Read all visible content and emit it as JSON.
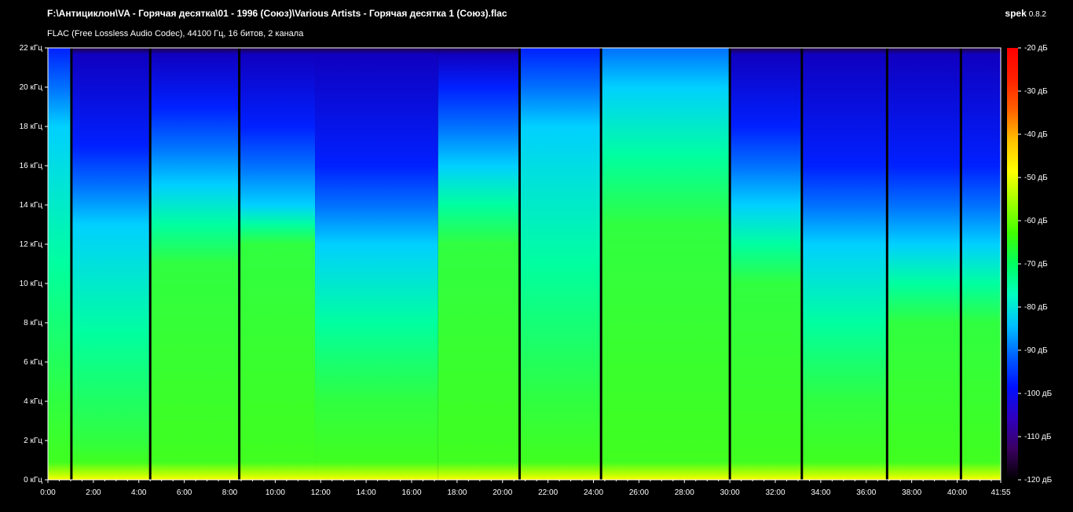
{
  "header": {
    "title": "F:\\Антициклон\\VA - Горячая десятка\\01 - 1996 (Союз)\\Various Artists - Горячая десятка 1 (Союз).flac",
    "app_name": "spek",
    "app_version": "0.8.2",
    "subtitle": "FLAC (Free Lossless Audio Codec), 44100 Гц, 16 битов, 2 канала"
  },
  "chart_data": {
    "type": "heatmap",
    "title": "",
    "xlabel": "",
    "ylabel": "",
    "x_range_seconds": [
      0,
      2515
    ],
    "y_range_khz": [
      0,
      22
    ],
    "x_ticks": [
      "0:00",
      "2:00",
      "4:00",
      "6:00",
      "8:00",
      "10:00",
      "12:00",
      "14:00",
      "16:00",
      "18:00",
      "20:00",
      "22:00",
      "24:00",
      "26:00",
      "28:00",
      "30:00",
      "32:00",
      "34:00",
      "36:00",
      "38:00",
      "40:00",
      "41:55"
    ],
    "y_ticks": [
      "0 кГц",
      "2 кГц",
      "4 кГц",
      "6 кГц",
      "8 кГц",
      "10 кГц",
      "12 кГц",
      "14 кГц",
      "16 кГц",
      "18 кГц",
      "20 кГц",
      "22 кГц"
    ],
    "colorbar_ticks": [
      "-20 дБ",
      "-30 дБ",
      "-40 дБ",
      "-50 дБ",
      "-60 дБ",
      "-70 дБ",
      "-80 дБ",
      "-90 дБ",
      "-100 дБ",
      "-110 дБ",
      "-120 дБ"
    ],
    "colorbar_range_db": [
      -120,
      -20
    ],
    "colorbar_colors": [
      "#000000",
      "#3a0060",
      "#3000c0",
      "#0010ff",
      "#0060ff",
      "#00c0ff",
      "#00ffc0",
      "#00ff60",
      "#40ff00",
      "#a0ff00",
      "#ffff00",
      "#ffc000",
      "#ff6000",
      "#ff2000",
      "#ff0000"
    ],
    "track_boundaries_seconds": [
      62,
      270,
      505,
      1245,
      1460,
      1800,
      1990,
      2215,
      2410
    ],
    "segments": [
      {
        "start": 0,
        "end": 62,
        "bright_khz": 4,
        "cyan_khz": 18
      },
      {
        "start": 62,
        "end": 270,
        "bright_khz": 2,
        "cyan_khz": 13
      },
      {
        "start": 270,
        "end": 505,
        "bright_khz": 11,
        "cyan_khz": 15
      },
      {
        "start": 505,
        "end": 705,
        "bright_khz": 12,
        "cyan_khz": 14
      },
      {
        "start": 705,
        "end": 1030,
        "bright_khz": 4,
        "cyan_khz": 12
      },
      {
        "start": 1030,
        "end": 1245,
        "bright_khz": 12,
        "cyan_khz": 16
      },
      {
        "start": 1245,
        "end": 1460,
        "bright_khz": 4,
        "cyan_khz": 18
      },
      {
        "start": 1460,
        "end": 1800,
        "bright_khz": 13,
        "cyan_khz": 20
      },
      {
        "start": 1800,
        "end": 1990,
        "bright_khz": 10,
        "cyan_khz": 14
      },
      {
        "start": 1990,
        "end": 2215,
        "bright_khz": 4,
        "cyan_khz": 12
      },
      {
        "start": 2215,
        "end": 2515,
        "bright_khz": 8,
        "cyan_khz": 12
      }
    ]
  }
}
